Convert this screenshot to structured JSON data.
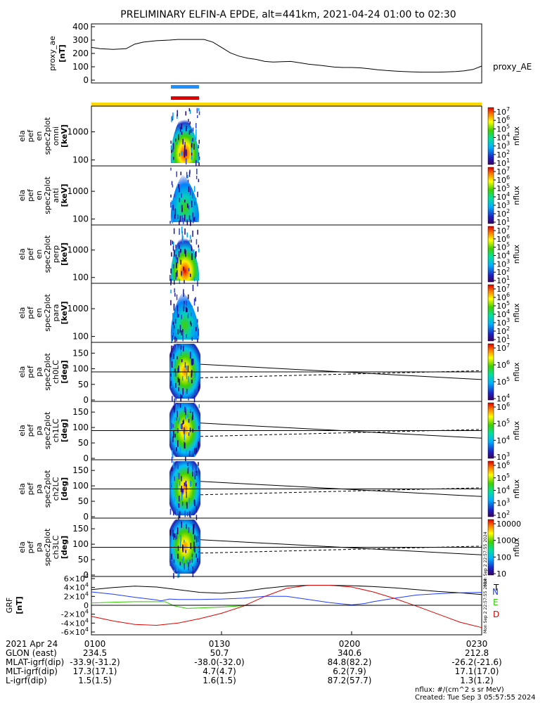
{
  "title": "PRELIMINARY ELFIN-A EPDE, alt=441km, 2021-04-24 01:00 to 02:30",
  "colors": {
    "blue_bar": "#1e90ff",
    "red_bar": "#e00000",
    "yellow_bar": "#ffd700",
    "grf_T": "#000000",
    "grf_N": "#1f3cff",
    "grf_E": "#2ecc00",
    "grf_D": "#e00000"
  },
  "colorbar_label": "nflux",
  "chart_data": [
    {
      "type": "line",
      "panel": "proxy_ae",
      "ylabel": [
        "proxy_ae",
        "[nT]"
      ],
      "yticks": [
        "400",
        "300",
        "200",
        "100",
        "0"
      ],
      "ylim": [
        0,
        420
      ],
      "legend": "proxy_AE",
      "x_minutes": [
        0,
        2,
        5,
        8,
        10,
        12,
        15,
        18,
        20,
        23,
        26,
        28,
        30,
        32,
        34,
        36,
        38,
        40,
        42,
        44,
        46,
        48,
        50,
        53,
        56,
        58,
        60,
        62,
        64,
        66,
        68,
        70,
        72,
        74,
        76,
        78,
        80,
        82,
        84,
        86,
        88,
        90
      ],
      "values": [
        245,
        235,
        230,
        235,
        270,
        285,
        295,
        300,
        305,
        305,
        305,
        285,
        245,
        205,
        180,
        165,
        155,
        140,
        135,
        138,
        140,
        130,
        120,
        110,
        98,
        95,
        95,
        92,
        85,
        78,
        72,
        68,
        65,
        62,
        60,
        60,
        60,
        62,
        65,
        70,
        80,
        105
      ]
    },
    {
      "type": "heatmap",
      "panel": "spec2plot_omni",
      "ylabel": [
        "ela",
        "pef",
        "en",
        "spec2plot",
        "omni",
        "[keV]"
      ],
      "yticks": [
        "1000",
        "100"
      ],
      "colorbar_ticks": [
        "10^7",
        "10^6",
        "10^5",
        "10^4",
        "10^3",
        "10^2",
        "10^1"
      ],
      "colorbar_label": "nflux"
    },
    {
      "type": "heatmap",
      "panel": "spec2plot_anti",
      "ylabel": [
        "ela",
        "pef",
        "en",
        "spec2plot",
        "anti",
        "[keV]"
      ],
      "yticks": [
        "1000",
        "100"
      ],
      "colorbar_ticks": [
        "10^7",
        "10^6",
        "10^5",
        "10^4",
        "10^3",
        "10^2",
        "10^1"
      ],
      "colorbar_label": "nflux"
    },
    {
      "type": "heatmap",
      "panel": "spec2plot_perp",
      "ylabel": [
        "ela",
        "pef",
        "en",
        "spec2plot",
        "perp",
        "[keV]"
      ],
      "yticks": [
        "1000",
        "100"
      ],
      "colorbar_ticks": [
        "10^7",
        "10^6",
        "10^5",
        "10^4",
        "10^3",
        "10^2",
        "10^1"
      ],
      "colorbar_label": "nflux"
    },
    {
      "type": "heatmap",
      "panel": "spec2plot_para",
      "ylabel": [
        "ela",
        "pef",
        "en",
        "spec2plot",
        "para",
        "[keV]"
      ],
      "yticks": [
        "1000",
        "100"
      ],
      "colorbar_ticks": [
        "10^7",
        "10^6",
        "10^5",
        "10^4",
        "10^3",
        "10^2",
        "10^1"
      ],
      "colorbar_label": "nflux"
    },
    {
      "type": "heatmap",
      "panel": "spec2plot_ch0LC",
      "ylabel": [
        "ela",
        "pef",
        "pa",
        "spec2plot",
        "ch0LC",
        "[deg]"
      ],
      "yticks": [
        "150",
        "100",
        "50",
        "0"
      ],
      "colorbar_ticks": [
        "10^7",
        "10^6",
        "10^5",
        "10^4"
      ],
      "colorbar_label": "nflux"
    },
    {
      "type": "heatmap",
      "panel": "spec2plot_ch1LC",
      "ylabel": [
        "ela",
        "pef",
        "pa",
        "spec2plot",
        "ch1LC",
        "[deg]"
      ],
      "yticks": [
        "150",
        "100",
        "50",
        "0"
      ],
      "colorbar_ticks": [
        "10^6",
        "10^5",
        "10^4",
        "10^3"
      ],
      "colorbar_label": "nflux"
    },
    {
      "type": "heatmap",
      "panel": "spec2plot_ch2LC",
      "ylabel": [
        "ela",
        "pef",
        "pa",
        "spec2plot",
        "ch2LC",
        "[deg]"
      ],
      "yticks": [
        "150",
        "100",
        "50",
        "0"
      ],
      "colorbar_ticks": [
        "10^6",
        "10^5",
        "10^4",
        "10^3",
        "10^2"
      ],
      "colorbar_label": "nflux"
    },
    {
      "type": "heatmap",
      "panel": "spec2plot_ch3LC",
      "ylabel": [
        "ela",
        "pef",
        "pa",
        "spec2plot",
        "ch3LC",
        "[deg]"
      ],
      "yticks": [
        "150",
        "100",
        "50",
        "0"
      ],
      "colorbar_ticks": [
        "10000",
        "1000",
        "100",
        "10"
      ],
      "colorbar_label": "nflux"
    },
    {
      "type": "line",
      "panel": "GRF",
      "ylabel": [
        "GRF",
        "[nT]"
      ],
      "yticks": [
        "6x10^4",
        "4x10^4",
        "2x10^4",
        "0",
        "-2x10^4",
        "-4x10^4",
        "-6x10^4"
      ],
      "ylim": [
        -60000,
        60000
      ],
      "legend": [
        "T",
        "N",
        "E",
        "D"
      ],
      "side_notes": [
        "Mon Sep  2 22:57:55 2024",
        "Mon Sep  2 22:57:55 2024"
      ],
      "series": [
        {
          "name": "T",
          "x_minutes": [
            0,
            5,
            10,
            15,
            20,
            25,
            30,
            35,
            40,
            45,
            50,
            55,
            60,
            65,
            70,
            75,
            80,
            85,
            90
          ],
          "values": [
            35000,
            40000,
            43000,
            41000,
            35000,
            29000,
            27000,
            31000,
            38000,
            43000,
            45000,
            45000,
            44000,
            42000,
            39000,
            35000,
            31000,
            28000,
            24000
          ]
        },
        {
          "name": "N",
          "x_minutes": [
            0,
            5,
            10,
            15,
            16,
            18,
            20,
            25,
            30,
            35,
            40,
            45,
            50,
            55,
            60,
            63,
            65,
            70,
            75,
            80,
            85,
            90
          ],
          "values": [
            30000,
            25000,
            18000,
            12000,
            10000,
            14000,
            13000,
            13000,
            14000,
            16000,
            20000,
            20000,
            13000,
            6000,
            1000,
            4000,
            8000,
            16000,
            23000,
            26000,
            28000,
            29000
          ]
        },
        {
          "name": "E",
          "x_minutes": [
            0,
            5,
            10,
            15,
            17,
            19,
            22,
            25,
            30,
            35,
            40,
            45,
            50,
            55,
            60,
            65,
            70,
            75,
            80,
            85,
            90
          ],
          "values": [
            5000,
            7000,
            8000,
            8000,
            8000,
            -1000,
            -7000,
            -6000,
            -4000,
            -1000,
            0,
            0,
            0,
            0,
            0,
            0,
            0,
            0,
            0,
            0,
            0
          ]
        },
        {
          "name": "D",
          "x_minutes": [
            0,
            5,
            10,
            15,
            20,
            25,
            30,
            35,
            40,
            45,
            50,
            55,
            60,
            65,
            70,
            75,
            80,
            85,
            90
          ],
          "values": [
            -25000,
            -35000,
            -43000,
            -45000,
            -40000,
            -30000,
            -18000,
            -2000,
            20000,
            38000,
            45000,
            45000,
            41000,
            30000,
            15000,
            -2000,
            -20000,
            -38000,
            -50000
          ]
        }
      ]
    }
  ],
  "footer": {
    "rows": [
      {
        "label": "2021 Apr 24",
        "values": [
          "0100",
          "0130",
          "0200",
          "0230"
        ]
      },
      {
        "label": "GLON (east)",
        "values": [
          "234.5",
          "50.7",
          "340.6",
          "212.8"
        ]
      },
      {
        "label": "MLAT-igrf(dip)",
        "values": [
          "-33.9(-31.2)",
          "-38.0(-32.0)",
          "84.8(82.2)",
          "-26.2(-21.6)"
        ]
      },
      {
        "label": "MLT-igrf(dip)",
        "values": [
          "17.3(17.1)",
          "4.7(4.7)",
          "6.2(7.9)",
          "17.1(17.0)"
        ]
      },
      {
        "label": "L-igrf(dip)",
        "values": [
          "1.5(1.5)",
          "1.6(1.5)",
          "87.2(57.7)",
          "1.3(1.2)"
        ]
      }
    ],
    "nflux_units": "nflux: #/(cm^2 s sr MeV)",
    "created": "Created: Tue Sep  3 05:57:55 2024"
  }
}
